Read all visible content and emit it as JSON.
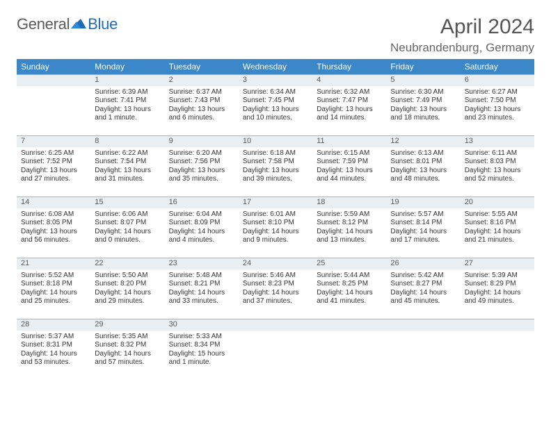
{
  "colors": {
    "header_bg": "#3b87c8",
    "header_text": "#ffffff",
    "daynum_bg": "#e9eef2",
    "daynum_text": "#5a5a5a",
    "body_text": "#333333",
    "page_bg": "#ffffff",
    "divider": "#9fb6c7"
  },
  "logo": {
    "word1": "General",
    "word2": "Blue"
  },
  "title": "April 2024",
  "location": "Neubrandenburg, Germany",
  "weekdays": [
    "Sunday",
    "Monday",
    "Tuesday",
    "Wednesday",
    "Thursday",
    "Friday",
    "Saturday"
  ],
  "weeks": [
    [
      null,
      {
        "d": "1",
        "sr": "6:39 AM",
        "ss": "7:41 PM",
        "dl": "Daylight: 13 hours and 1 minute."
      },
      {
        "d": "2",
        "sr": "6:37 AM",
        "ss": "7:43 PM",
        "dl": "Daylight: 13 hours and 6 minutes."
      },
      {
        "d": "3",
        "sr": "6:34 AM",
        "ss": "7:45 PM",
        "dl": "Daylight: 13 hours and 10 minutes."
      },
      {
        "d": "4",
        "sr": "6:32 AM",
        "ss": "7:47 PM",
        "dl": "Daylight: 13 hours and 14 minutes."
      },
      {
        "d": "5",
        "sr": "6:30 AM",
        "ss": "7:49 PM",
        "dl": "Daylight: 13 hours and 18 minutes."
      },
      {
        "d": "6",
        "sr": "6:27 AM",
        "ss": "7:50 PM",
        "dl": "Daylight: 13 hours and 23 minutes."
      }
    ],
    [
      {
        "d": "7",
        "sr": "6:25 AM",
        "ss": "7:52 PM",
        "dl": "Daylight: 13 hours and 27 minutes."
      },
      {
        "d": "8",
        "sr": "6:22 AM",
        "ss": "7:54 PM",
        "dl": "Daylight: 13 hours and 31 minutes."
      },
      {
        "d": "9",
        "sr": "6:20 AM",
        "ss": "7:56 PM",
        "dl": "Daylight: 13 hours and 35 minutes."
      },
      {
        "d": "10",
        "sr": "6:18 AM",
        "ss": "7:58 PM",
        "dl": "Daylight: 13 hours and 39 minutes."
      },
      {
        "d": "11",
        "sr": "6:15 AM",
        "ss": "7:59 PM",
        "dl": "Daylight: 13 hours and 44 minutes."
      },
      {
        "d": "12",
        "sr": "6:13 AM",
        "ss": "8:01 PM",
        "dl": "Daylight: 13 hours and 48 minutes."
      },
      {
        "d": "13",
        "sr": "6:11 AM",
        "ss": "8:03 PM",
        "dl": "Daylight: 13 hours and 52 minutes."
      }
    ],
    [
      {
        "d": "14",
        "sr": "6:08 AM",
        "ss": "8:05 PM",
        "dl": "Daylight: 13 hours and 56 minutes."
      },
      {
        "d": "15",
        "sr": "6:06 AM",
        "ss": "8:07 PM",
        "dl": "Daylight: 14 hours and 0 minutes."
      },
      {
        "d": "16",
        "sr": "6:04 AM",
        "ss": "8:09 PM",
        "dl": "Daylight: 14 hours and 4 minutes."
      },
      {
        "d": "17",
        "sr": "6:01 AM",
        "ss": "8:10 PM",
        "dl": "Daylight: 14 hours and 9 minutes."
      },
      {
        "d": "18",
        "sr": "5:59 AM",
        "ss": "8:12 PM",
        "dl": "Daylight: 14 hours and 13 minutes."
      },
      {
        "d": "19",
        "sr": "5:57 AM",
        "ss": "8:14 PM",
        "dl": "Daylight: 14 hours and 17 minutes."
      },
      {
        "d": "20",
        "sr": "5:55 AM",
        "ss": "8:16 PM",
        "dl": "Daylight: 14 hours and 21 minutes."
      }
    ],
    [
      {
        "d": "21",
        "sr": "5:52 AM",
        "ss": "8:18 PM",
        "dl": "Daylight: 14 hours and 25 minutes."
      },
      {
        "d": "22",
        "sr": "5:50 AM",
        "ss": "8:20 PM",
        "dl": "Daylight: 14 hours and 29 minutes."
      },
      {
        "d": "23",
        "sr": "5:48 AM",
        "ss": "8:21 PM",
        "dl": "Daylight: 14 hours and 33 minutes."
      },
      {
        "d": "24",
        "sr": "5:46 AM",
        "ss": "8:23 PM",
        "dl": "Daylight: 14 hours and 37 minutes."
      },
      {
        "d": "25",
        "sr": "5:44 AM",
        "ss": "8:25 PM",
        "dl": "Daylight: 14 hours and 41 minutes."
      },
      {
        "d": "26",
        "sr": "5:42 AM",
        "ss": "8:27 PM",
        "dl": "Daylight: 14 hours and 45 minutes."
      },
      {
        "d": "27",
        "sr": "5:39 AM",
        "ss": "8:29 PM",
        "dl": "Daylight: 14 hours and 49 minutes."
      }
    ],
    [
      {
        "d": "28",
        "sr": "5:37 AM",
        "ss": "8:31 PM",
        "dl": "Daylight: 14 hours and 53 minutes."
      },
      {
        "d": "29",
        "sr": "5:35 AM",
        "ss": "8:32 PM",
        "dl": "Daylight: 14 hours and 57 minutes."
      },
      {
        "d": "30",
        "sr": "5:33 AM",
        "ss": "8:34 PM",
        "dl": "Daylight: 15 hours and 1 minute."
      },
      null,
      null,
      null,
      null
    ]
  ],
  "labels": {
    "sunrise": "Sunrise: ",
    "sunset": "Sunset: "
  }
}
